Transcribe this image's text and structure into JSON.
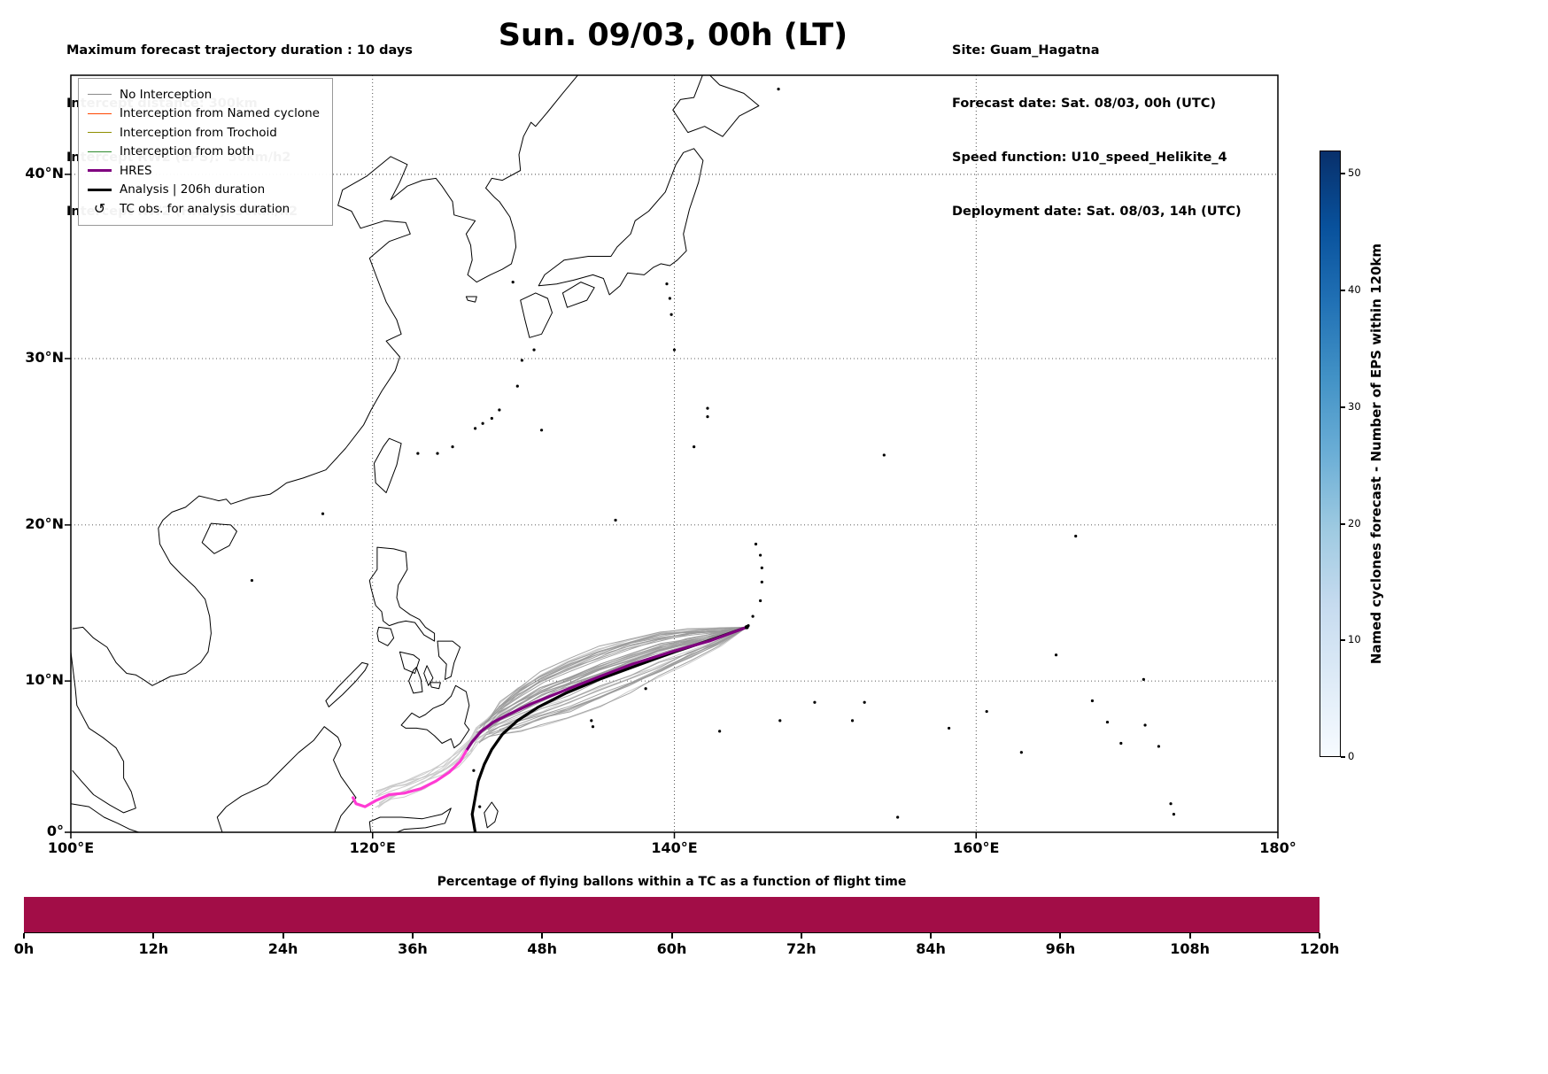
{
  "header": {
    "left": {
      "line1": "Maximum forecast trajectory duration : 10 days",
      "line2": "Intercept distance: 300km",
      "line3": "Intercept RW2 (EPS):  30km/h2",
      "line4": "Intercept RW2 (HRES): 30km/h2"
    },
    "title": "Sun. 09/03, 00h (LT)",
    "right": {
      "line1": "Site: Guam_Hagatna",
      "line2": "Forecast date: Sat. 08/03, 00h (UTC)",
      "line3": "Speed function: U10_speed_Helikite_4",
      "line4": "Deployment date: Sat. 08/03, 14h (UTC)"
    }
  },
  "legend": {
    "items": [
      {
        "type": "line",
        "label": "No Interception",
        "color": "#8a8a8a",
        "line_width": 1.5
      },
      {
        "type": "line",
        "label": "Interception from Named cyclone",
        "color": "#ff4500",
        "line_width": 1.5
      },
      {
        "type": "line",
        "label": "Interception from Trochoid",
        "color": "#8f8f00",
        "line_width": 1.5
      },
      {
        "type": "line",
        "label": "Interception from both",
        "color": "#2e8b2e",
        "line_width": 1.5
      },
      {
        "type": "line",
        "label": "HRES",
        "color": "#800080",
        "line_width": 3.5
      },
      {
        "type": "line",
        "label": "Analysis | 206h duration",
        "color": "#000000",
        "line_width": 3.5
      },
      {
        "type": "marker",
        "label": "TC obs. for analysis duration",
        "glyph": "↺"
      }
    ]
  },
  "axes": {
    "x_ticks": [
      {
        "label": "100°E",
        "lon": 100
      },
      {
        "label": "120°E",
        "lon": 120
      },
      {
        "label": "140°E",
        "lon": 140
      },
      {
        "label": "160°E",
        "lon": 160
      },
      {
        "label": "180°",
        "lon": 180
      }
    ],
    "y_ticks": [
      {
        "label": "0°",
        "lat": 0
      },
      {
        "label": "10°N",
        "lat": 10
      },
      {
        "label": "20°N",
        "lat": 20
      },
      {
        "label": "30°N",
        "lat": 30
      },
      {
        "label": "40°N",
        "lat": 40
      }
    ]
  },
  "colorbar": {
    "label": "Named cyclones forecast - Number of EPS within 120km",
    "ticks": [
      0,
      10,
      20,
      30,
      40,
      50
    ],
    "max": 52,
    "stops": [
      "#f7fbff",
      "#deebf7",
      "#c6dbef",
      "#9ecae1",
      "#6baed6",
      "#4292c6",
      "#2171b5",
      "#08519c",
      "#08306b"
    ]
  },
  "bottom_chart": {
    "title": "Percentage of flying ballons within a TC as a function of flight time",
    "x_ticks": [
      "0h",
      "12h",
      "24h",
      "36h",
      "48h",
      "60h",
      "72h",
      "84h",
      "96h",
      "108h",
      "120h"
    ],
    "bar_color": "#a20d47",
    "bar_value_percent": 100
  },
  "chart_data": {
    "type": "line",
    "subtype": "trajectory_map",
    "title": "Sun. 09/03, 00h (LT)",
    "projection": "mercator",
    "extent": {
      "lon": [
        100,
        180
      ],
      "lat": [
        0,
        45
      ]
    },
    "gridlines": {
      "lons": [
        120,
        140,
        160
      ],
      "lats": [
        10,
        20,
        30,
        40
      ]
    },
    "legend_position": "upper left",
    "origin": {
      "site": "Guam_Hagatna",
      "lon": 144.8,
      "lat": 13.5
    },
    "series": [
      {
        "name": "HRES",
        "color": "#800080",
        "width": 3.2,
        "points": [
          [
            144.8,
            13.5
          ],
          [
            142.3,
            12.6
          ],
          [
            139.8,
            11.9
          ],
          [
            137.2,
            11.1
          ],
          [
            134.8,
            10.2
          ],
          [
            132.5,
            9.3
          ],
          [
            130.5,
            8.5
          ],
          [
            129.0,
            7.8
          ],
          [
            128.0,
            7.3
          ],
          [
            127.2,
            6.7
          ],
          [
            126.6,
            6.0
          ],
          [
            126.2,
            5.4
          ]
        ]
      },
      {
        "name": "HRES (final segment)",
        "color": "#ff3bd4",
        "width": 3.2,
        "points": [
          [
            126.2,
            5.4
          ],
          [
            125.8,
            4.7
          ],
          [
            125.1,
            4.0
          ],
          [
            124.2,
            3.4
          ],
          [
            123.2,
            2.9
          ],
          [
            122.1,
            2.6
          ],
          [
            121.1,
            2.5
          ],
          [
            120.2,
            2.1
          ],
          [
            119.5,
            1.7
          ],
          [
            118.9,
            1.9
          ],
          [
            118.7,
            2.3
          ]
        ]
      },
      {
        "name": "Analysis | 206h duration",
        "color": "#000000",
        "width": 3.2,
        "points": [
          [
            144.8,
            13.5
          ],
          [
            142.5,
            12.7
          ],
          [
            140.0,
            11.9
          ],
          [
            137.5,
            11.0
          ],
          [
            135.0,
            10.1
          ],
          [
            132.8,
            9.2
          ],
          [
            131.0,
            8.3
          ],
          [
            129.6,
            7.4
          ],
          [
            128.6,
            6.5
          ],
          [
            127.9,
            5.5
          ],
          [
            127.4,
            4.5
          ],
          [
            127.0,
            3.4
          ],
          [
            126.8,
            2.3
          ],
          [
            126.6,
            1.2
          ],
          [
            126.8,
            0.0
          ]
        ]
      }
    ],
    "ensemble": {
      "name": "EPS trajectories (No Interception)",
      "count": 46,
      "color": "#9a9a9a",
      "extended_color": "#c9c9c9",
      "extended_fraction": 0.32,
      "base_points": [
        [
          144.8,
          13.5
        ],
        [
          143.0,
          12.9
        ],
        [
          141.0,
          12.3
        ],
        [
          139.0,
          11.7
        ],
        [
          137.0,
          11.0
        ],
        [
          135.0,
          10.3
        ],
        [
          133.0,
          9.5
        ],
        [
          131.2,
          8.8
        ],
        [
          129.7,
          8.1
        ],
        [
          128.5,
          7.5
        ],
        [
          127.6,
          6.9
        ],
        [
          127.0,
          6.4
        ]
      ],
      "extension_points": [
        [
          126.4,
          5.6
        ],
        [
          125.6,
          4.8
        ],
        [
          124.6,
          4.1
        ],
        [
          123.4,
          3.5
        ],
        [
          122.2,
          3.0
        ],
        [
          121.2,
          2.7
        ],
        [
          120.3,
          2.2
        ]
      ]
    },
    "bottom_bar": {
      "type": "bar",
      "x": [
        "0h",
        "12h",
        "24h",
        "36h",
        "48h",
        "60h",
        "72h",
        "84h",
        "96h",
        "108h",
        "120h"
      ],
      "value_percent": 100,
      "color": "#a20d47"
    }
  }
}
